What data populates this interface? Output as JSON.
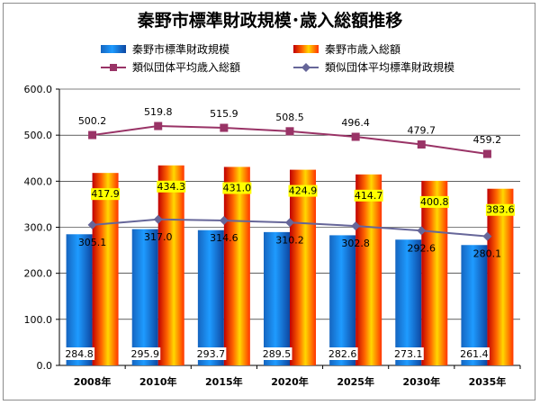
{
  "chart_data": {
    "type": "bar",
    "title": "秦野市標準財政規模･歳入総額推移",
    "categories": [
      "2008年",
      "2010年",
      "2015年",
      "2020年",
      "2025年",
      "2030年",
      "2035年"
    ],
    "bar_series": [
      {
        "name": "秦野市標準財政規模",
        "color": "#1e90ff",
        "values": [
          284.8,
          295.9,
          293.7,
          289.5,
          282.6,
          273.1,
          261.4
        ],
        "labels": [
          "284.8",
          "295.9",
          "293.7",
          "289.5",
          "282.6",
          "273.1",
          "261.4"
        ]
      },
      {
        "name": "秦野市歳入総額",
        "color": "#ff3300",
        "values": [
          417.9,
          434.3,
          431.0,
          424.9,
          414.7,
          400.8,
          383.6
        ],
        "labels": [
          "417.9",
          "434.3",
          "431.0",
          "424.9",
          "414.7",
          "400.8",
          "383.6"
        ]
      }
    ],
    "line_series": [
      {
        "name": "類似団体平均歳入総額",
        "color": "#993366",
        "marker": "square",
        "values": [
          500.2,
          519.8,
          515.9,
          508.5,
          496.4,
          479.7,
          459.2
        ],
        "labels": [
          "500.2",
          "519.8",
          "515.9",
          "508.5",
          "496.4",
          "479.7",
          "459.2"
        ]
      },
      {
        "name": "類似団体平均標準財政規模",
        "color": "#666699",
        "marker": "diamond",
        "values": [
          305.1,
          317.0,
          314.6,
          310.2,
          302.8,
          292.6,
          280.1
        ],
        "labels": [
          "305.1",
          "317.0",
          "314.6",
          "310.2",
          "302.8",
          "292.6",
          "280.1"
        ]
      }
    ],
    "ylim": [
      0,
      600
    ],
    "yticks": [
      "0.0",
      "100.0",
      "200.0",
      "300.0",
      "400.0",
      "500.0",
      "600.0"
    ],
    "grid": true,
    "legend_position": "top"
  }
}
